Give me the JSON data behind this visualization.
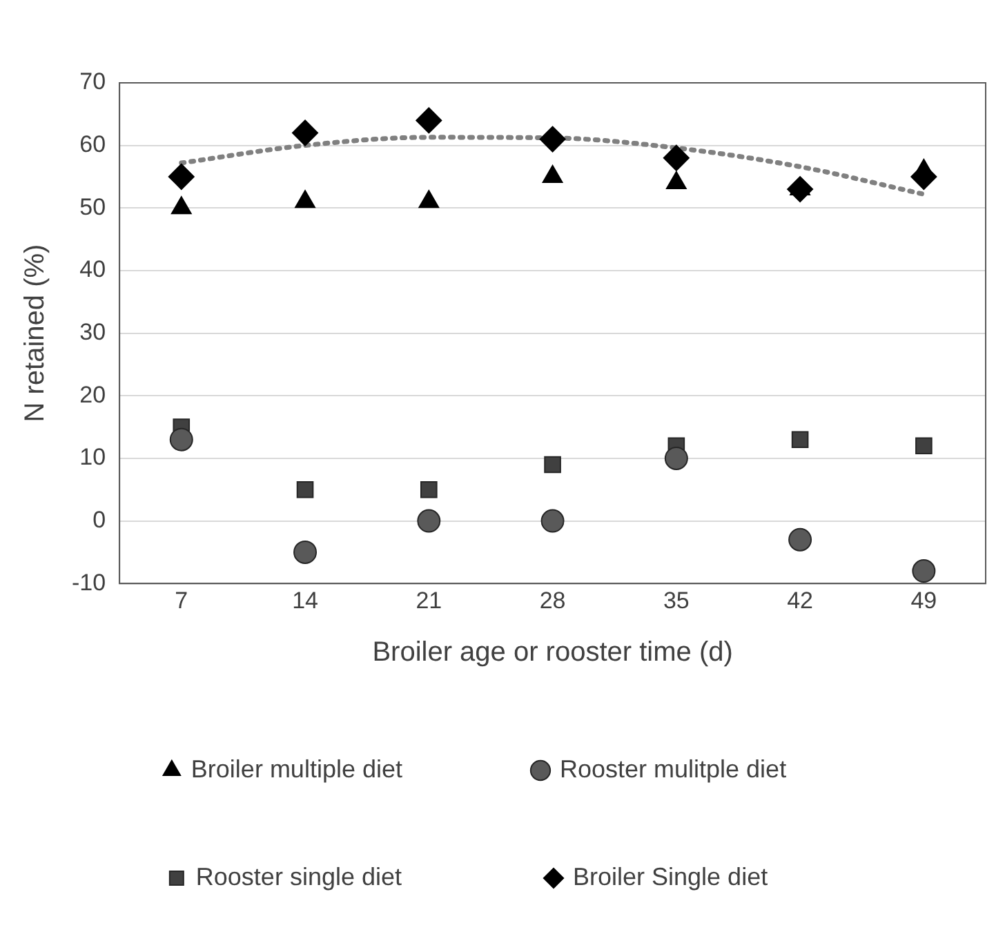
{
  "chart_data": {
    "type": "scatter",
    "xlabel": "Broiler age or rooster time (d)",
    "ylabel": "N retained (%)",
    "x": [
      7,
      14,
      21,
      28,
      35,
      42,
      49
    ],
    "xlim": [
      3.5,
      52.5
    ],
    "xticks": [
      7,
      14,
      21,
      28,
      35,
      42,
      49
    ],
    "ylim": [
      -10,
      70
    ],
    "yticks": [
      -10,
      0,
      10,
      20,
      30,
      40,
      50,
      60,
      70
    ],
    "grid": "y",
    "legend": "bottom",
    "series": [
      {
        "name": "Rooster mulitple diet",
        "color": "#595959",
        "marker": "circle",
        "values": [
          13,
          -5,
          0,
          0,
          10,
          -3,
          -8
        ]
      },
      {
        "name": "Rooster single diet",
        "color": "#404040",
        "marker": "square",
        "values": [
          15,
          5,
          5,
          9,
          12,
          13,
          12
        ]
      },
      {
        "name": "Broiler multiple diet",
        "color": "#000000",
        "marker": "triangle",
        "values": [
          50,
          51,
          51,
          55,
          54,
          53,
          56
        ]
      },
      {
        "name": "Broiler Single diet",
        "color": "#000000",
        "marker": "diamond",
        "values": [
          55,
          62,
          64,
          61,
          58,
          53,
          55
        ]
      },
      {
        "type": "line",
        "color": "#808080",
        "marker": "none",
        "line_style": "dotted",
        "x": [
          7,
          14,
          21,
          28,
          35,
          42,
          49
        ],
        "values": [
          57.2,
          60.0,
          61.3,
          61.2,
          59.6,
          56.6,
          52.2
        ]
      }
    ]
  }
}
